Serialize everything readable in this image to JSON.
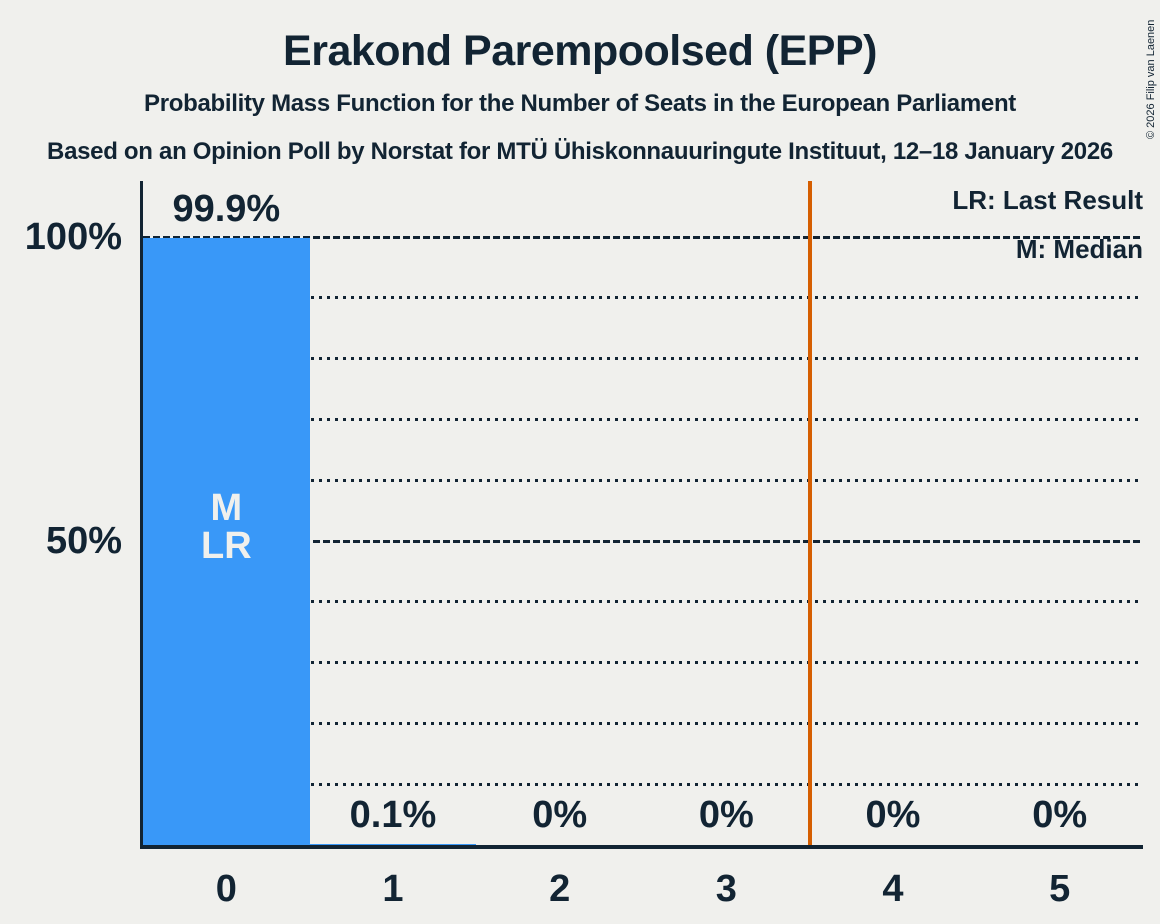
{
  "header": {
    "title": "Erakond Parempoolsed (EPP)",
    "subtitle": "Probability Mass Function for the Number of Seats in the European Parliament",
    "source": "Based on an Opinion Poll by Norstat for MTÜ Ühiskonnauuringute Instituut, 12–18 January 2026"
  },
  "legend": {
    "last_result": "LR: Last Result",
    "median": "M: Median"
  },
  "copyright": "© 2026 Filip van Laenen",
  "chart_data": {
    "type": "bar",
    "title": "Erakond Parempoolsed (EPP)",
    "xlabel": "",
    "ylabel": "",
    "ylim": [
      0,
      100
    ],
    "grid": "dotted horizontal line every 10%, dashed lines at 50% and 100%",
    "legend_position": "top-right inside plot",
    "categories": [
      "0",
      "1",
      "2",
      "3",
      "4",
      "5"
    ],
    "values": [
      99.9,
      0.1,
      0,
      0,
      0,
      0
    ],
    "bar_labels": [
      "99.9%",
      "0.1%",
      "0%",
      "0%",
      "0%",
      "0%"
    ],
    "bar_label_positions": [
      "above",
      "bottom",
      "bottom",
      "bottom",
      "bottom",
      "bottom"
    ],
    "ylabel_ticks": [
      {
        "value": 100,
        "label": "100%"
      },
      {
        "value": 50,
        "label": "50%"
      }
    ],
    "median_category": "0",
    "last_result_category": "0",
    "bar_marker_lines": [
      "M",
      "LR"
    ],
    "threshold_line_x": 3.5,
    "colors": {
      "bar": "#3998F8",
      "threshold_line": "#D55E00",
      "text": "#122433",
      "background": "#F0F0ED",
      "label_inside_bar": "#F0F0ED"
    }
  }
}
